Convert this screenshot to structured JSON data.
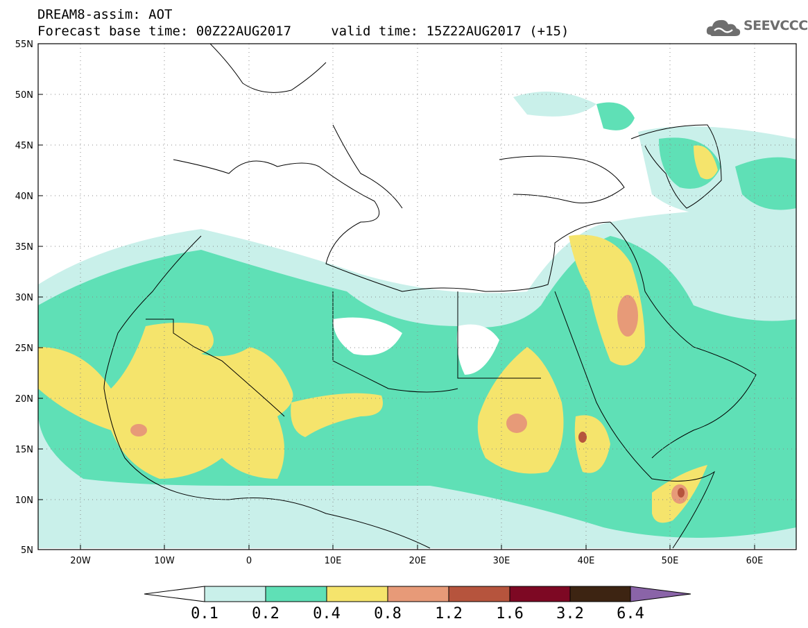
{
  "header": {
    "line1": "DREAM8-assim: AOT",
    "line2": "Forecast base time: 00Z22AUG2017     valid time: 15Z22AUG2017 (+15)"
  },
  "logo": {
    "text": "SEEVCCC",
    "icon": "cloud-icon"
  },
  "map": {
    "lon_range": [
      -25,
      65
    ],
    "lat_range": [
      5,
      55
    ],
    "lat_labels": [
      "55N",
      "50N",
      "45N",
      "40N",
      "35N",
      "30N",
      "25N",
      "20N",
      "15N",
      "10N",
      "5N"
    ],
    "lon_labels": [
      "20W",
      "10W",
      "0",
      "10E",
      "20E",
      "30E",
      "40E",
      "50E",
      "60E"
    ]
  },
  "colorbar": {
    "thresholds": [
      "0.1",
      "0.2",
      "0.4",
      "0.8",
      "1.2",
      "1.6",
      "3.2",
      "6.4"
    ],
    "colors": [
      "#ffffff",
      "#c9f0ea",
      "#5fe0b6",
      "#f5e46c",
      "#e79a78",
      "#b6543d",
      "#7d0823",
      "#3d2412",
      "#8a64a8"
    ]
  }
}
